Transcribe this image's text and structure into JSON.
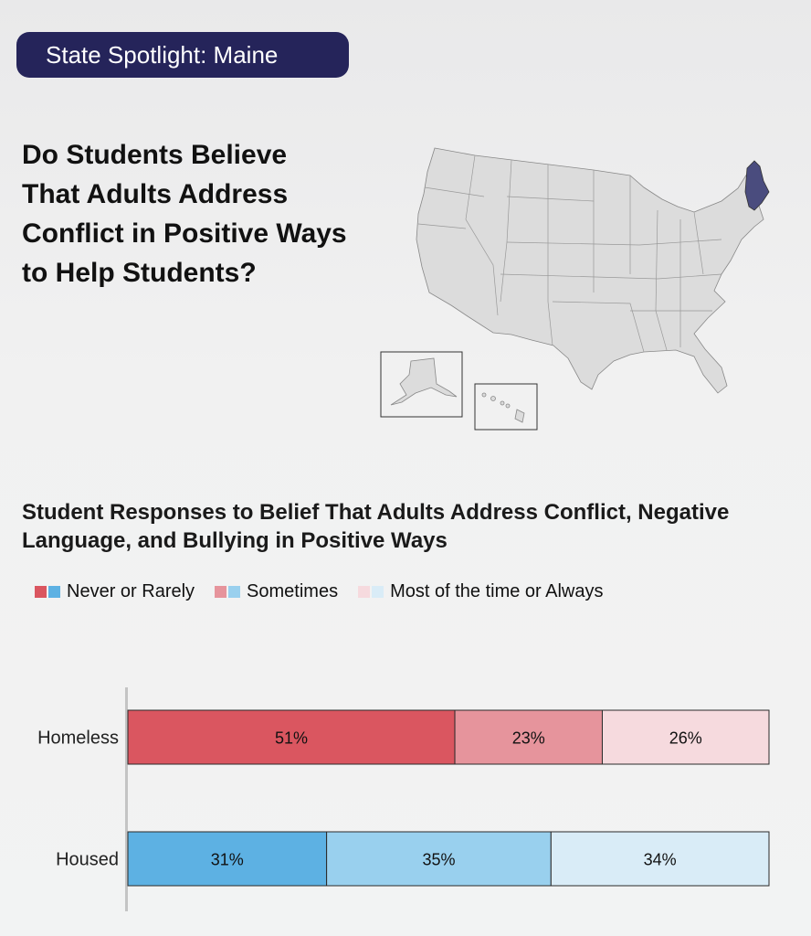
{
  "header": {
    "badge": "State Spotlight: Maine"
  },
  "question_title": "Do Students Believe That Adults Address Conflict in Positive Ways to Help Students?",
  "map": {
    "highlighted_state": "Maine",
    "highlight_color": "#4a4c7e",
    "base_color": "#dcdcdc"
  },
  "chart_data": {
    "type": "bar",
    "orientation": "horizontal-stacked-100",
    "title": "Student Responses to Belief That Adults Address Conflict, Negative Language, and Bullying in Positive Ways",
    "legend": [
      "Never or Rarely",
      "Sometimes",
      "Most of the time or Always"
    ],
    "legend_placement": "top-left",
    "categories": [
      "Homeless",
      "Housed"
    ],
    "rows": [
      {
        "name": "Homeless",
        "values": [
          51,
          23,
          26
        ],
        "labels": [
          "51%",
          "23%",
          "26%"
        ],
        "colors": [
          "#da5660",
          "#e6949c",
          "#f6dade"
        ]
      },
      {
        "name": "Housed",
        "values": [
          31,
          35,
          34
        ],
        "labels": [
          "31%",
          "35%",
          "34%"
        ],
        "colors": [
          "#5db1e3",
          "#99d0ee",
          "#d9ecf7"
        ]
      }
    ],
    "xlim": [
      0,
      100
    ]
  }
}
